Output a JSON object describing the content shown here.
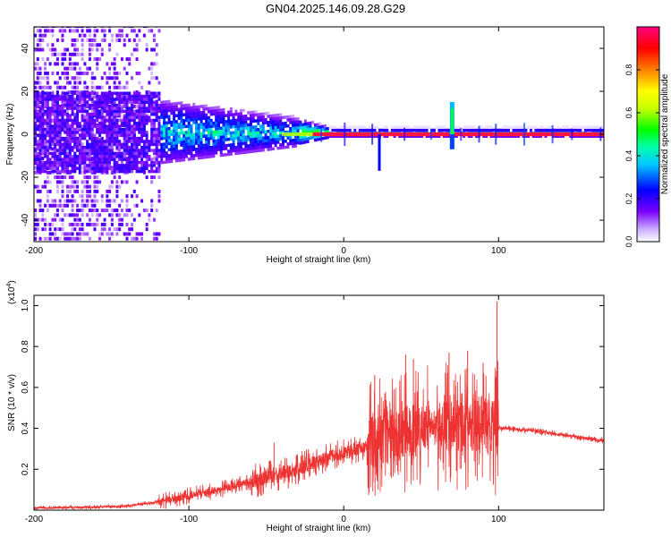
{
  "title": "GN04.2025.146.09.28.G29",
  "chart_data": [
    {
      "type": "heatmap",
      "xlabel": "Height of straight line (km)",
      "ylabel": "Frequency (Hz)",
      "xlim": [
        -200,
        168
      ],
      "ylim": [
        -50,
        50
      ],
      "x_ticks": [
        -200,
        -100,
        0,
        100
      ],
      "y_ticks": [
        -40,
        -20,
        0,
        20,
        40
      ],
      "colorbar": {
        "label": "Normalized spectral amplitude",
        "range": [
          0,
          1
        ],
        "ticks": [
          0.0,
          0.2,
          0.4,
          0.6,
          0.8
        ],
        "tick_labels": [
          "0.0",
          "0.2",
          "0.4",
          "0.6",
          "0.8"
        ],
        "colors": [
          "#ffffff",
          "#7b00ff",
          "#0000ff",
          "#00ffff",
          "#00ff00",
          "#ffff00",
          "#ff8000",
          "#ff0000",
          "#ff0080"
        ]
      },
      "features": {
        "carrier_line_frequency_hz": 0,
        "carrier_visible_from_km": -20,
        "tone_spike": {
          "x_km": 70,
          "frequency_hz": 15
        },
        "tone_dip": {
          "x_km": 23,
          "frequency_hz": -17
        },
        "noise_region_km": [
          -200,
          -120
        ],
        "spread_region_km": [
          -120,
          -30
        ]
      }
    },
    {
      "type": "line",
      "xlabel": "Height of straight line (km)",
      "ylabel": "SNR (10 * v/v)",
      "multiplier_label": "(x10",
      "multiplier_exp": "4",
      "multiplier_close": ")",
      "xlim": [
        -200,
        168
      ],
      "ylim": [
        0,
        1.05
      ],
      "x_ticks": [
        -200,
        -100,
        0,
        100
      ],
      "y_ticks": [
        0.2,
        0.4,
        0.6,
        0.8,
        1.0
      ],
      "y_tick_labels": [
        "0.2",
        "0.4",
        "0.6",
        "0.8",
        "1.0"
      ],
      "line_color": "#ee3333",
      "envelope": {
        "x": [
          -200,
          -160,
          -140,
          -120,
          -100,
          -80,
          -60,
          -40,
          -30,
          -20,
          -10,
          0,
          10,
          20,
          30,
          40,
          50,
          60,
          70,
          80,
          90,
          100,
          105,
          120,
          140,
          168
        ],
        "y": [
          0.01,
          0.015,
          0.02,
          0.04,
          0.07,
          0.1,
          0.14,
          0.18,
          0.2,
          0.23,
          0.26,
          0.28,
          0.3,
          0.33,
          0.36,
          0.38,
          0.4,
          0.42,
          0.43,
          0.43,
          0.42,
          0.4,
          0.4,
          0.39,
          0.37,
          0.34
        ]
      },
      "spikes": [
        {
          "x": -45,
          "y": 0.33
        },
        {
          "x": 20,
          "y": 0.66
        },
        {
          "x": 40,
          "y": 0.76
        },
        {
          "x": 45,
          "y": 0.74
        },
        {
          "x": 68,
          "y": 0.77
        },
        {
          "x": 80,
          "y": 0.78
        },
        {
          "x": 90,
          "y": 0.72
        },
        {
          "x": 99,
          "y": 1.02
        }
      ]
    }
  ]
}
